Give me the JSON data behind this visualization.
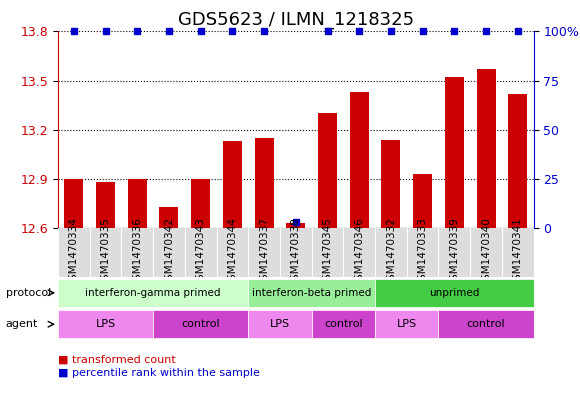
{
  "title": "GDS5623 / ILMN_1218325",
  "samples": [
    "GSM1470334",
    "GSM1470335",
    "GSM1470336",
    "GSM1470342",
    "GSM1470343",
    "GSM1470344",
    "GSM1470337",
    "GSM1470338",
    "GSM1470345",
    "GSM1470346",
    "GSM1470332",
    "GSM1470333",
    "GSM1470339",
    "GSM1470340",
    "GSM1470341"
  ],
  "transformed_counts": [
    12.9,
    12.88,
    12.9,
    12.73,
    12.9,
    13.13,
    13.15,
    12.63,
    13.3,
    13.43,
    13.14,
    12.93,
    13.52,
    13.57,
    13.42
  ],
  "percentile_ranks": [
    100,
    100,
    100,
    100,
    100,
    100,
    100,
    3,
    100,
    100,
    100,
    100,
    100,
    100,
    100
  ],
  "ylim_left": [
    12.6,
    13.8
  ],
  "ylim_right": [
    0,
    100
  ],
  "yticks_left": [
    12.6,
    12.9,
    13.2,
    13.5,
    13.8
  ],
  "yticks_right": [
    0,
    25,
    50,
    75,
    100
  ],
  "bar_color": "#cc0000",
  "dot_color": "#0000cc",
  "protocol_groups": [
    {
      "label": "interferon-gamma primed",
      "start": 0,
      "end": 6,
      "color": "#ccffcc"
    },
    {
      "label": "interferon-beta primed",
      "start": 6,
      "end": 10,
      "color": "#99ee99"
    },
    {
      "label": "unprimed",
      "start": 10,
      "end": 15,
      "color": "#44cc44"
    }
  ],
  "agent_groups": [
    {
      "label": "LPS",
      "start": 0,
      "end": 3,
      "color": "#ee88ee"
    },
    {
      "label": "control",
      "start": 3,
      "end": 6,
      "color": "#cc44cc"
    },
    {
      "label": "LPS",
      "start": 6,
      "end": 8,
      "color": "#ee88ee"
    },
    {
      "label": "control",
      "start": 8,
      "end": 10,
      "color": "#cc44cc"
    },
    {
      "label": "LPS",
      "start": 10,
      "end": 12,
      "color": "#ee88ee"
    },
    {
      "label": "control",
      "start": 12,
      "end": 15,
      "color": "#cc44cc"
    }
  ],
  "legend_items": [
    {
      "label": "transformed count",
      "color": "#cc0000",
      "marker": "s"
    },
    {
      "label": "percentile rank within the sample",
      "color": "#0000cc",
      "marker": "s"
    }
  ],
  "xlabel": "",
  "ylabel_left": "",
  "ylabel_right": "",
  "background_color": "#ffffff",
  "grid_color": "#000000",
  "title_fontsize": 13,
  "tick_fontsize": 9,
  "sample_fontsize": 7.5
}
